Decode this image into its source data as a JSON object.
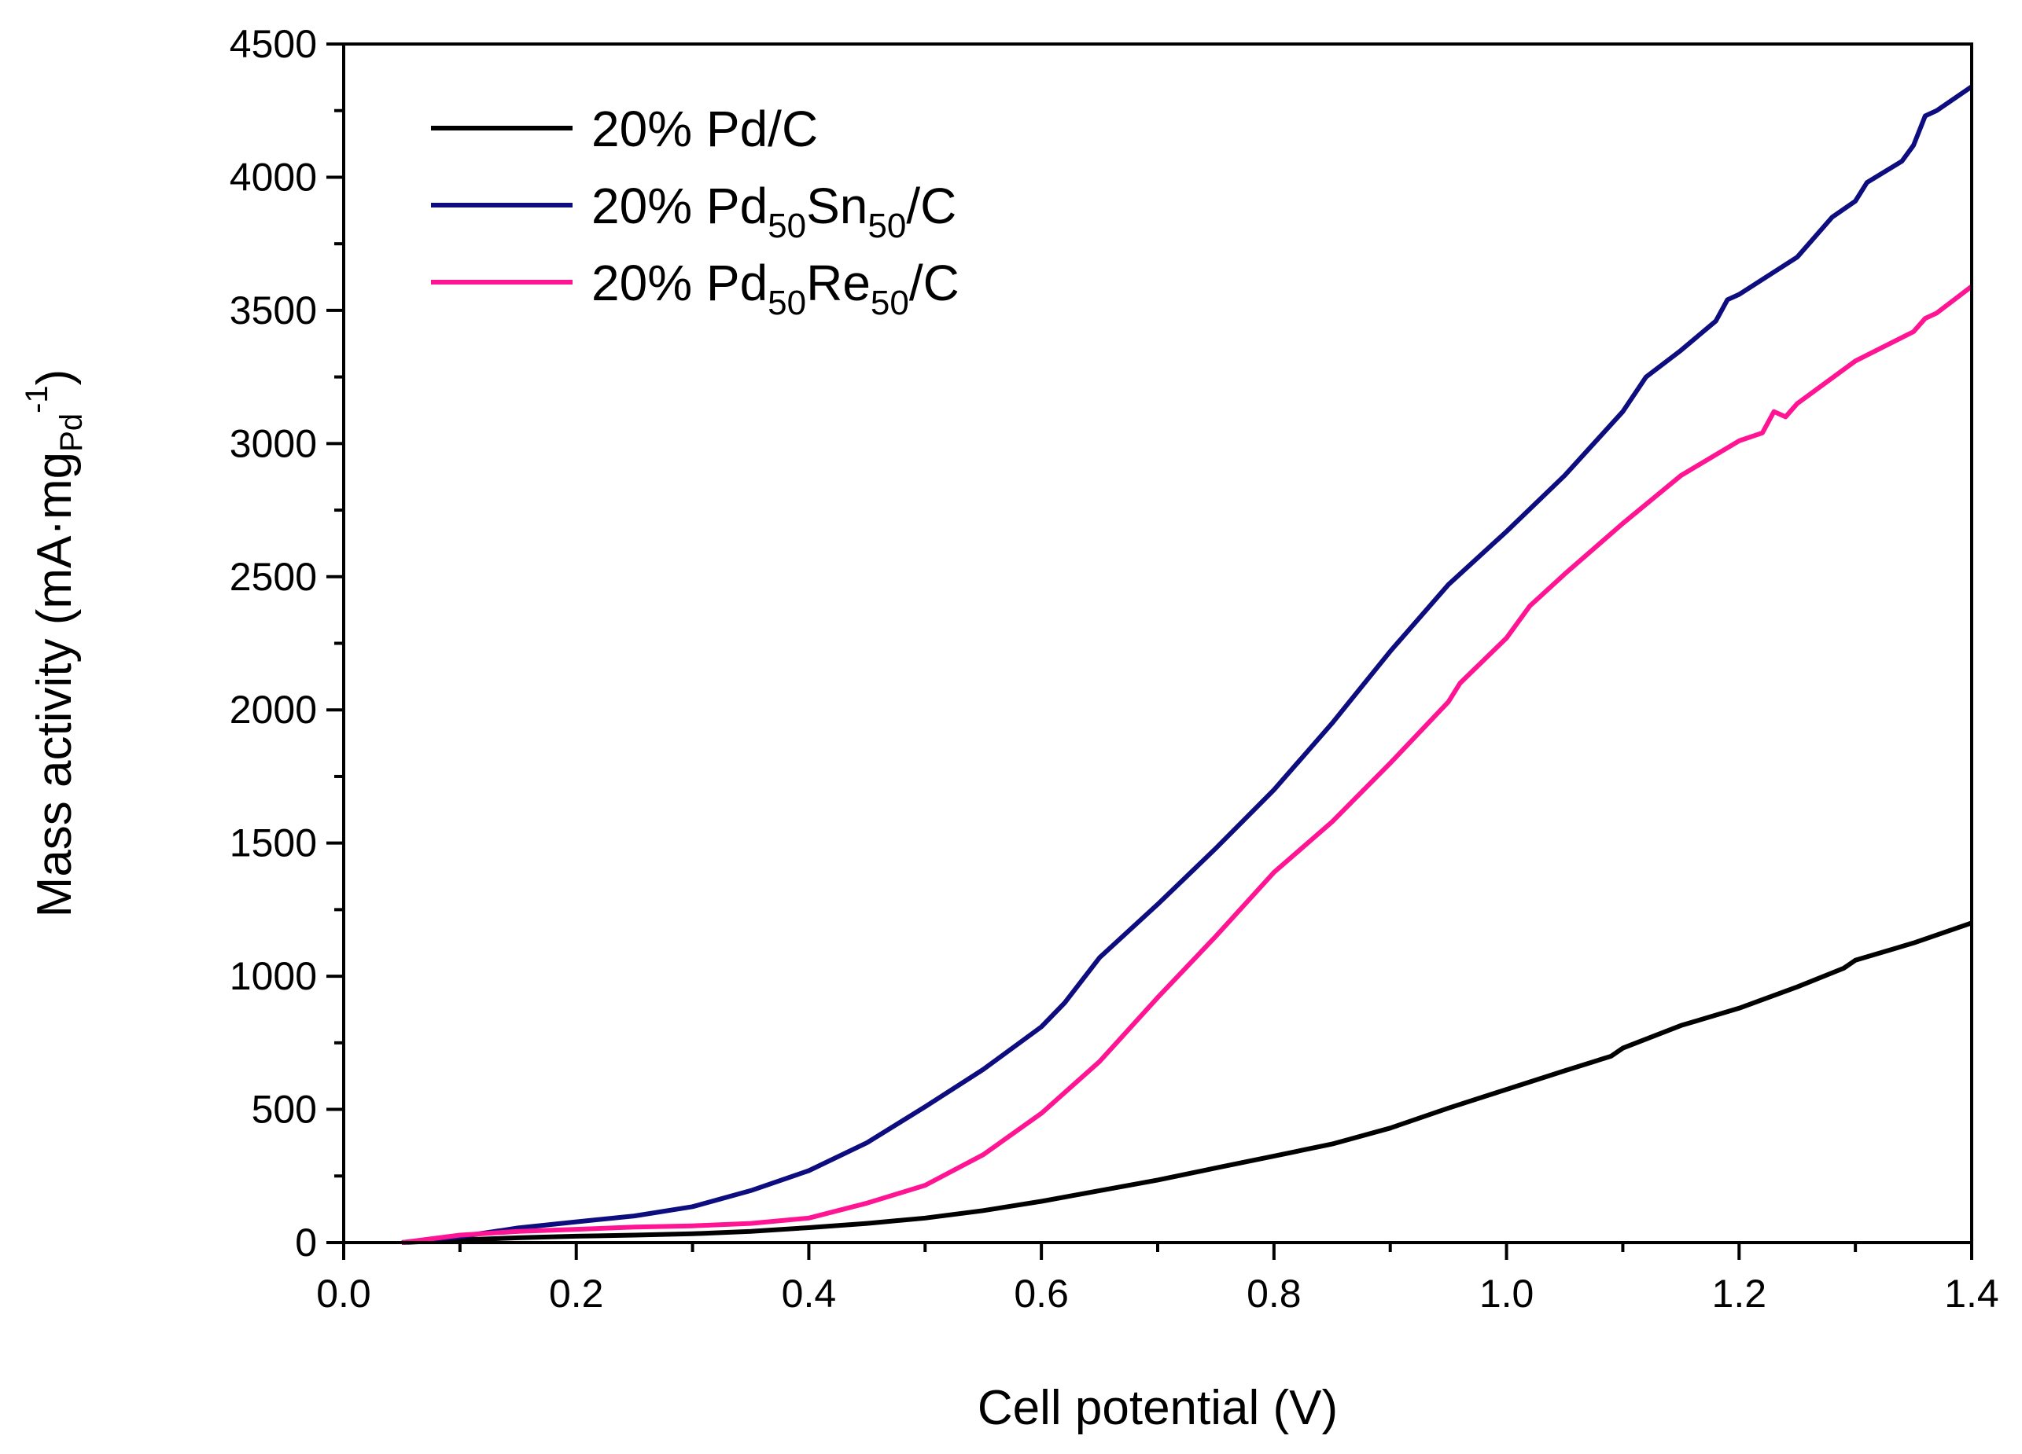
{
  "chart_data": {
    "type": "line",
    "title": "",
    "xlabel": "Cell potential (V)",
    "ylabel": {
      "main": "Mass activity (mA·mg",
      "sub": "Pd",
      "sup": "-1",
      "close": ")"
    },
    "xlim": [
      0.0,
      1.4
    ],
    "ylim": [
      0,
      4500
    ],
    "x_ticks": [
      0.0,
      0.2,
      0.4,
      0.6,
      0.8,
      1.0,
      1.2,
      1.4
    ],
    "x_tick_labels": [
      "0.0",
      "0.2",
      "0.4",
      "0.6",
      "0.8",
      "1.0",
      "1.2",
      "1.4"
    ],
    "y_ticks": [
      0,
      500,
      1000,
      1500,
      2000,
      2500,
      3000,
      3500,
      4000,
      4500
    ],
    "y_tick_labels": [
      "0",
      "500",
      "1000",
      "1500",
      "2000",
      "2500",
      "3000",
      "3500",
      "4000",
      "4500"
    ],
    "grid": false,
    "legend_position": "top-left",
    "series": [
      {
        "name": "20% Pd/C",
        "legend": {
          "pre": "20% Pd/C",
          "parts": []
        },
        "color": "#000000",
        "x": [
          0.05,
          0.1,
          0.15,
          0.2,
          0.25,
          0.3,
          0.35,
          0.4,
          0.45,
          0.5,
          0.55,
          0.6,
          0.65,
          0.7,
          0.75,
          0.8,
          0.85,
          0.9,
          0.95,
          1.0,
          1.05,
          1.09,
          1.1,
          1.15,
          1.2,
          1.25,
          1.29,
          1.3,
          1.35,
          1.4
        ],
        "y": [
          0,
          10,
          18,
          24,
          28,
          33,
          42,
          56,
          72,
          92,
          120,
          155,
          195,
          235,
          280,
          325,
          370,
          430,
          505,
          575,
          645,
          700,
          730,
          815,
          880,
          960,
          1030,
          1060,
          1125,
          1200
        ]
      },
      {
        "name": "20% Pd50Sn50/C",
        "legend": {
          "pre": "20% Pd",
          "parts": [
            [
              "50",
              "Sn"
            ],
            [
              "50",
              "/C"
            ]
          ]
        },
        "color": "#0d0d7f",
        "x": [
          0.05,
          0.1,
          0.15,
          0.2,
          0.25,
          0.3,
          0.35,
          0.4,
          0.45,
          0.5,
          0.55,
          0.6,
          0.62,
          0.65,
          0.7,
          0.75,
          0.8,
          0.85,
          0.9,
          0.95,
          1.0,
          1.05,
          1.1,
          1.12,
          1.15,
          1.18,
          1.19,
          1.2,
          1.25,
          1.28,
          1.3,
          1.31,
          1.34,
          1.35,
          1.36,
          1.37,
          1.4
        ],
        "y": [
          0,
          22,
          55,
          78,
          100,
          135,
          195,
          270,
          375,
          510,
          650,
          810,
          900,
          1070,
          1270,
          1480,
          1700,
          1950,
          2220,
          2470,
          2670,
          2880,
          3120,
          3250,
          3350,
          3460,
          3540,
          3560,
          3700,
          3850,
          3910,
          3980,
          4060,
          4120,
          4230,
          4250,
          4340
        ]
      },
      {
        "name": "20% Pd50Re50/C",
        "legend": {
          "pre": "20% Pd",
          "parts": [
            [
              "50",
              "Re"
            ],
            [
              "50",
              "/C"
            ]
          ]
        },
        "color": "#ff1493",
        "x": [
          0.05,
          0.1,
          0.15,
          0.2,
          0.25,
          0.3,
          0.35,
          0.4,
          0.45,
          0.5,
          0.55,
          0.6,
          0.65,
          0.7,
          0.75,
          0.8,
          0.85,
          0.9,
          0.95,
          0.96,
          1.0,
          1.02,
          1.05,
          1.1,
          1.15,
          1.2,
          1.22,
          1.23,
          1.24,
          1.25,
          1.3,
          1.35,
          1.36,
          1.37,
          1.4
        ],
        "y": [
          0,
          28,
          42,
          50,
          58,
          63,
          72,
          92,
          148,
          215,
          330,
          485,
          680,
          920,
          1150,
          1390,
          1580,
          1800,
          2030,
          2100,
          2270,
          2390,
          2510,
          2700,
          2880,
          3010,
          3040,
          3120,
          3100,
          3150,
          3310,
          3420,
          3470,
          3490,
          3590
        ]
      }
    ]
  }
}
